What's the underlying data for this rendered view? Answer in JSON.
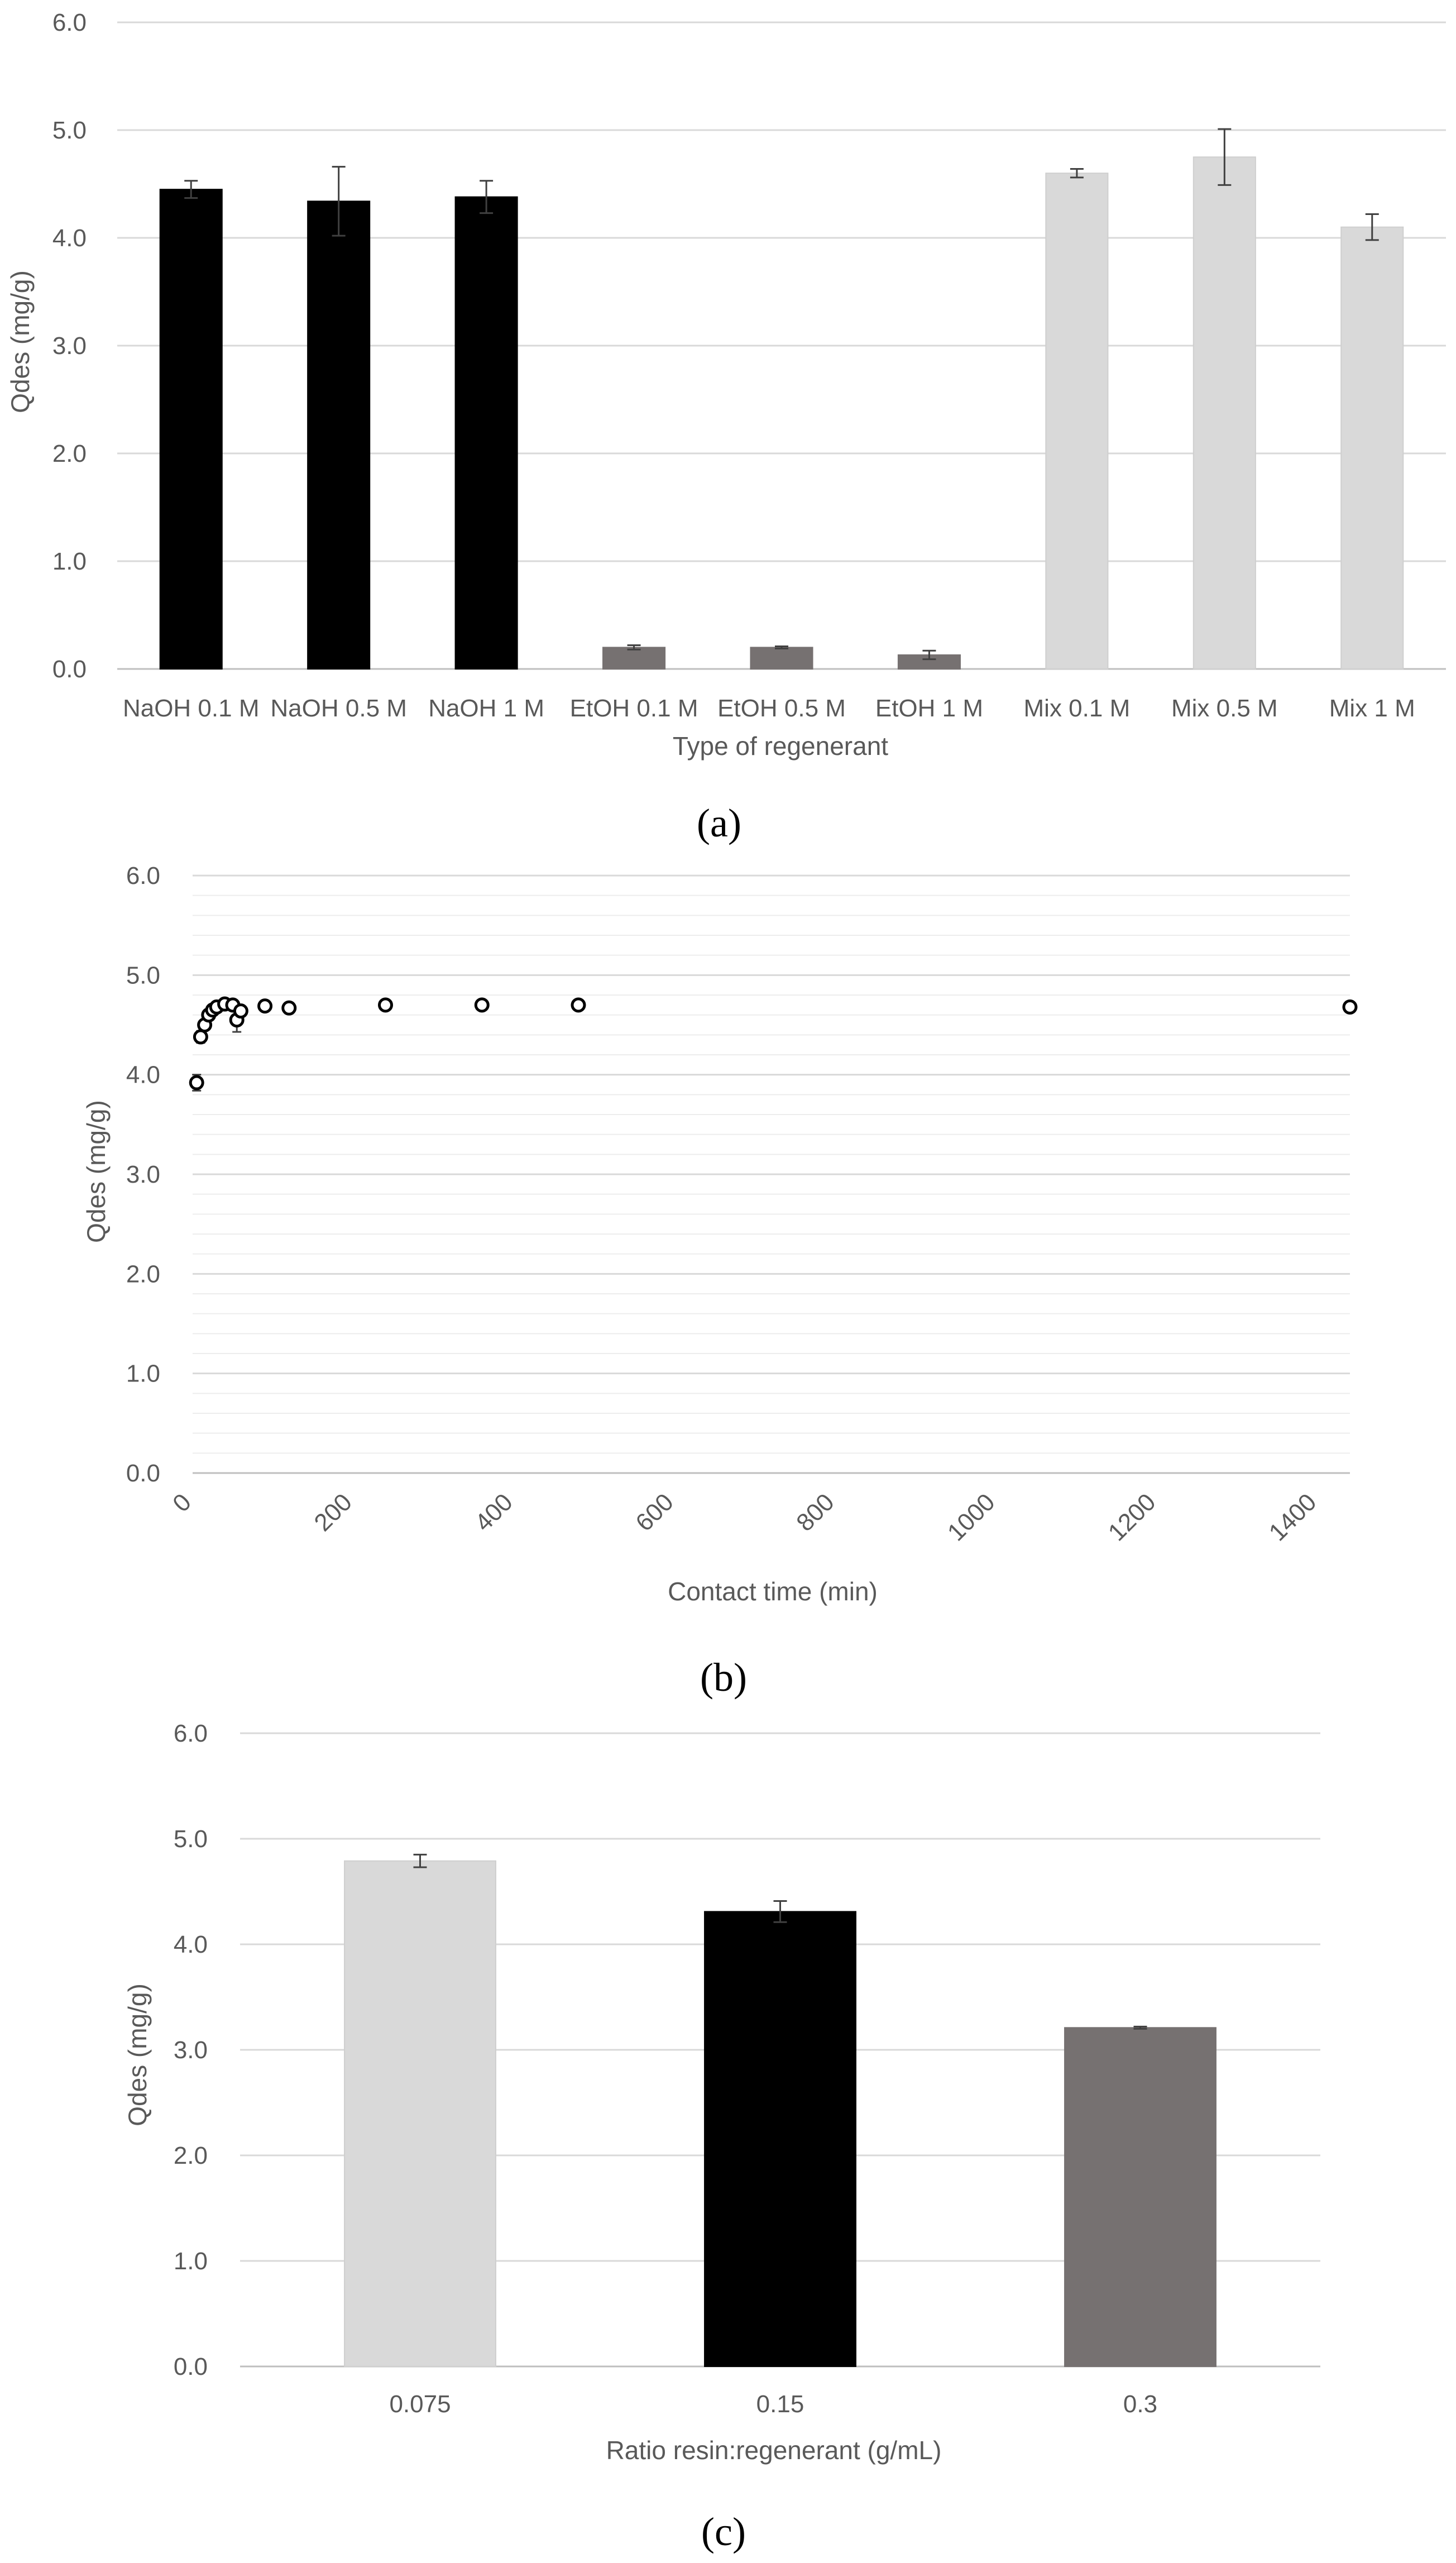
{
  "colors": {
    "naoh": "#000000",
    "etoh": "#767171",
    "mix": "#d9d9d9",
    "grid": "#d9d9d9",
    "minor_grid": "#ededed",
    "axis": "#bfbfbf",
    "text": "#595959",
    "error_bar": "#404040"
  },
  "chart_data": [
    {
      "panel": "(a)",
      "type": "bar",
      "xlabel": "Type of regenerant",
      "ylabel": "Qdes (mg/g)",
      "ylim": [
        0,
        6
      ],
      "yticks": [
        "0.0",
        "1.0",
        "2.0",
        "3.0",
        "4.0",
        "5.0",
        "6.0"
      ],
      "grid": true,
      "categories": [
        "NaOH 0.1 M",
        "NaOH 0.5 M",
        "NaOH 1 M",
        "EtOH 0.1 M",
        "EtOH 0.5 M",
        "EtOH 1 M",
        "Mix 0.1 M",
        "Mix 0.5 M",
        "Mix 1 M"
      ],
      "values": [
        4.45,
        4.34,
        4.38,
        0.2,
        0.2,
        0.13,
        4.6,
        4.75,
        4.1
      ],
      "errors": [
        0.08,
        0.32,
        0.15,
        0.02,
        0.01,
        0.04,
        0.04,
        0.26,
        0.12
      ],
      "bar_colors": [
        "#000000",
        "#000000",
        "#000000",
        "#767171",
        "#767171",
        "#767171",
        "#d9d9d9",
        "#d9d9d9",
        "#d9d9d9"
      ]
    },
    {
      "panel": "(b)",
      "type": "scatter",
      "xlabel": "Contact time (min)",
      "ylabel": "Qdes (mg/g)",
      "xlim": [
        0,
        1440
      ],
      "ylim": [
        0,
        6
      ],
      "xticks": [
        "0",
        "200",
        "400",
        "600",
        "800",
        "1000",
        "1200",
        "1400"
      ],
      "yticks": [
        "0.0",
        "1.0",
        "2.0",
        "3.0",
        "4.0",
        "5.0",
        "6.0"
      ],
      "grid": true,
      "x": [
        5,
        10,
        15,
        20,
        25,
        30,
        40,
        50,
        55,
        60,
        90,
        120,
        240,
        360,
        480,
        1440
      ],
      "y": [
        3.92,
        4.38,
        4.5,
        4.6,
        4.65,
        4.68,
        4.71,
        4.7,
        4.55,
        4.64,
        4.69,
        4.67,
        4.7,
        4.7,
        4.7,
        4.68
      ],
      "errors": [
        0.08,
        0.06,
        0.05,
        0.04,
        0.03,
        0.03,
        0.02,
        0.03,
        0.12,
        0.03,
        0.02,
        0.02,
        0.02,
        0.02,
        0.02,
        0.02
      ]
    },
    {
      "panel": "(c)",
      "type": "bar",
      "xlabel": "Ratio resin:regenerant (g/mL)",
      "ylabel": "Qdes (mg/g)",
      "ylim": [
        0,
        6
      ],
      "yticks": [
        "0.0",
        "1.0",
        "2.0",
        "3.0",
        "4.0",
        "5.0",
        "6.0"
      ],
      "grid": true,
      "categories": [
        "0.075",
        "0.15",
        "0.3"
      ],
      "values": [
        4.79,
        4.31,
        3.21
      ],
      "errors": [
        0.06,
        0.1,
        0.01
      ],
      "bar_colors": [
        "#d9d9d9",
        "#000000",
        "#767171"
      ]
    }
  ]
}
